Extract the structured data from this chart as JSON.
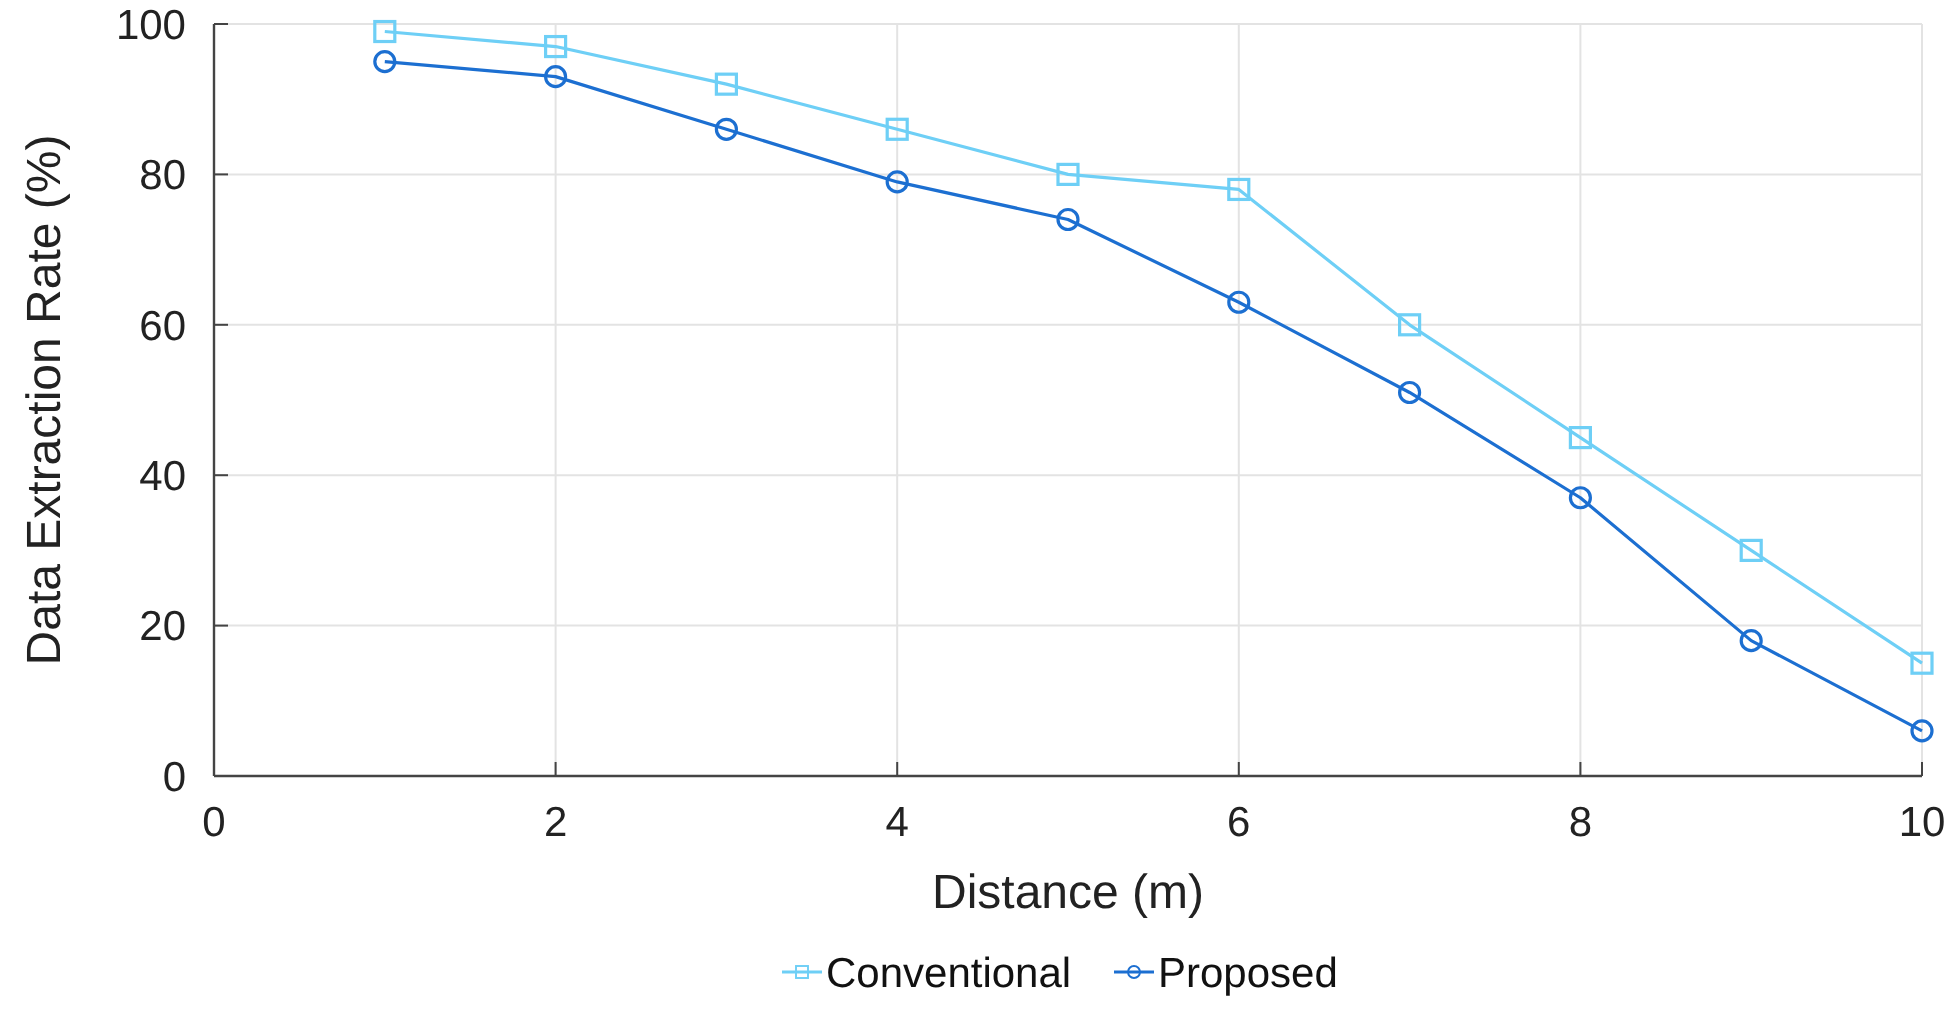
{
  "chart_data": {
    "type": "line",
    "xlabel": "Distance (m)",
    "ylabel": "Data Extraction Rate (%)",
    "x": [
      1,
      2,
      3,
      4,
      5,
      6,
      7,
      8,
      9,
      10
    ],
    "series": [
      {
        "name": "Conventional",
        "color": "#6ecff6",
        "marker": "square",
        "values": [
          99,
          97,
          92,
          86,
          80,
          78,
          60,
          45,
          30,
          15
        ]
      },
      {
        "name": "Proposed",
        "color": "#1c6fd1",
        "marker": "circle",
        "values": [
          95,
          93,
          86,
          79,
          74,
          63,
          51,
          37,
          18,
          6
        ]
      }
    ],
    "xlim": [
      0,
      10
    ],
    "xticks": [
      0,
      2,
      4,
      6,
      8,
      10
    ],
    "ylim": [
      0,
      100
    ],
    "yticks": [
      0,
      20,
      40,
      60,
      80,
      100
    ],
    "grid": true,
    "legend": "bottom",
    "line_style": "solid"
  }
}
